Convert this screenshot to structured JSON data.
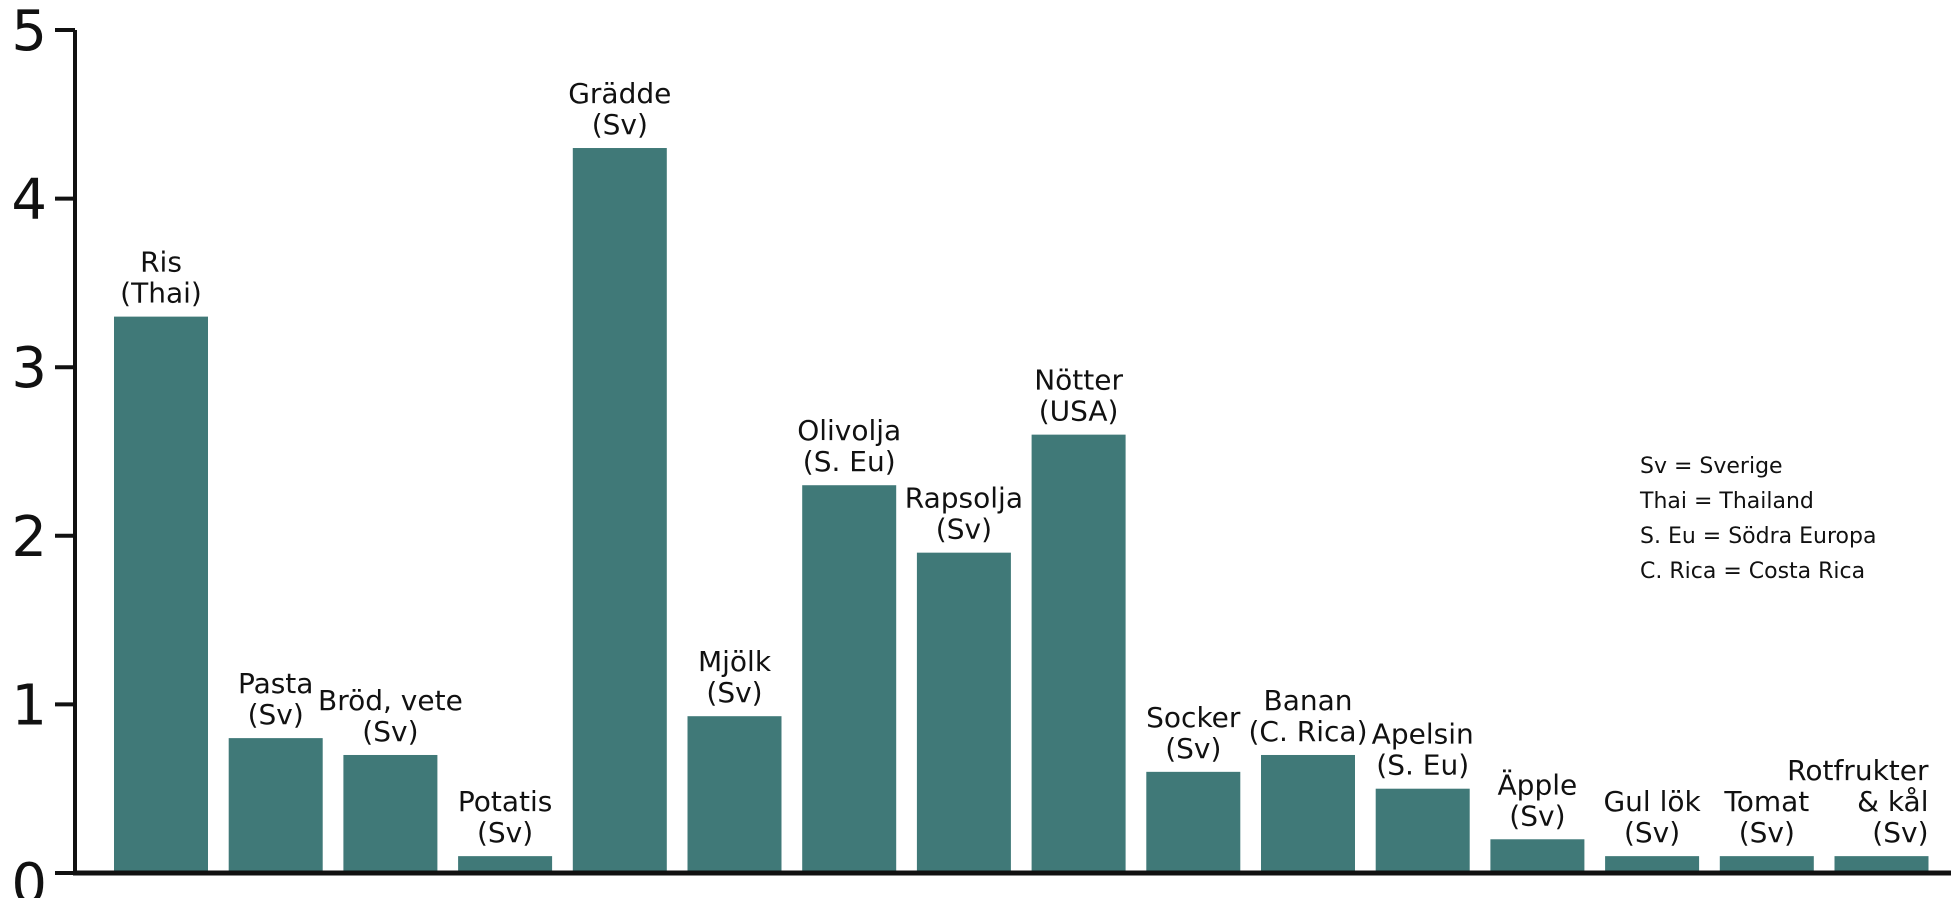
{
  "chart_data": {
    "type": "bar",
    "title": "",
    "xlabel": "",
    "ylabel": "",
    "ylim": [
      0,
      5
    ],
    "yticks": [
      "0",
      "1",
      "2",
      "3",
      "4",
      "5"
    ],
    "grid": false,
    "bar_color": "#407978",
    "categories": [
      [
        "Ris",
        "(Thai)"
      ],
      [
        "Pasta",
        "(Sv)"
      ],
      [
        "Bröd, vete",
        "(Sv)"
      ],
      [
        "Potatis",
        "(Sv)"
      ],
      [
        "Grädde",
        "(Sv)"
      ],
      [
        "Mjölk",
        "(Sv)"
      ],
      [
        "Olivolja",
        "(S. Eu)"
      ],
      [
        "Rapsolja",
        "(Sv)"
      ],
      [
        "Nötter",
        "(USA)"
      ],
      [
        "Socker",
        "(Sv)"
      ],
      [
        "Banan",
        "(C. Rica)"
      ],
      [
        "Apelsin",
        "(S. Eu)"
      ],
      [
        "Äpple",
        "(Sv)"
      ],
      [
        "Gul lök",
        "(Sv)"
      ],
      [
        "Tomat",
        "(Sv)"
      ],
      [
        "Rotfrukter",
        "& kål",
        "(Sv)"
      ]
    ],
    "values": [
      3.3,
      0.8,
      0.7,
      0.1,
      4.3,
      0.93,
      2.3,
      1.9,
      2.6,
      0.6,
      0.7,
      0.5,
      0.2,
      0.1,
      0.1,
      0.1
    ],
    "legend_position": "right",
    "legend": [
      "Sv = Sverige",
      "Thai = Thailand",
      "S. Eu = Södra Europa",
      "C. Rica = Costa Rica"
    ]
  }
}
